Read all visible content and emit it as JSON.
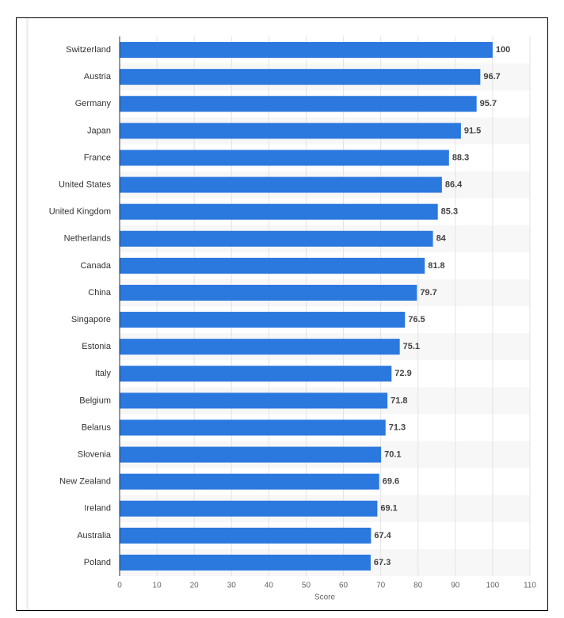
{
  "chart_data": {
    "type": "bar",
    "orientation": "horizontal",
    "x_axis_label": "Score",
    "categories": [
      "Switzerland",
      "Austria",
      "Germany",
      "Japan",
      "France",
      "United States",
      "United Kingdom",
      "Netherlands",
      "Canada",
      "China",
      "Singapore",
      "Estonia",
      "Italy",
      "Belgium",
      "Belarus",
      "Slovenia",
      "New Zealand",
      "Ireland",
      "Australia",
      "Poland"
    ],
    "values": [
      100,
      96.7,
      95.7,
      91.5,
      88.3,
      86.4,
      85.3,
      84,
      81.8,
      79.7,
      76.5,
      75.1,
      72.9,
      71.8,
      71.3,
      70.1,
      69.6,
      69.1,
      67.4,
      67.3
    ],
    "color": "#2b78de",
    "xlim": [
      0,
      110
    ],
    "xticks": [
      0,
      10,
      20,
      30,
      40,
      50,
      60,
      70,
      80,
      90,
      100,
      110
    ],
    "grid": true
  }
}
